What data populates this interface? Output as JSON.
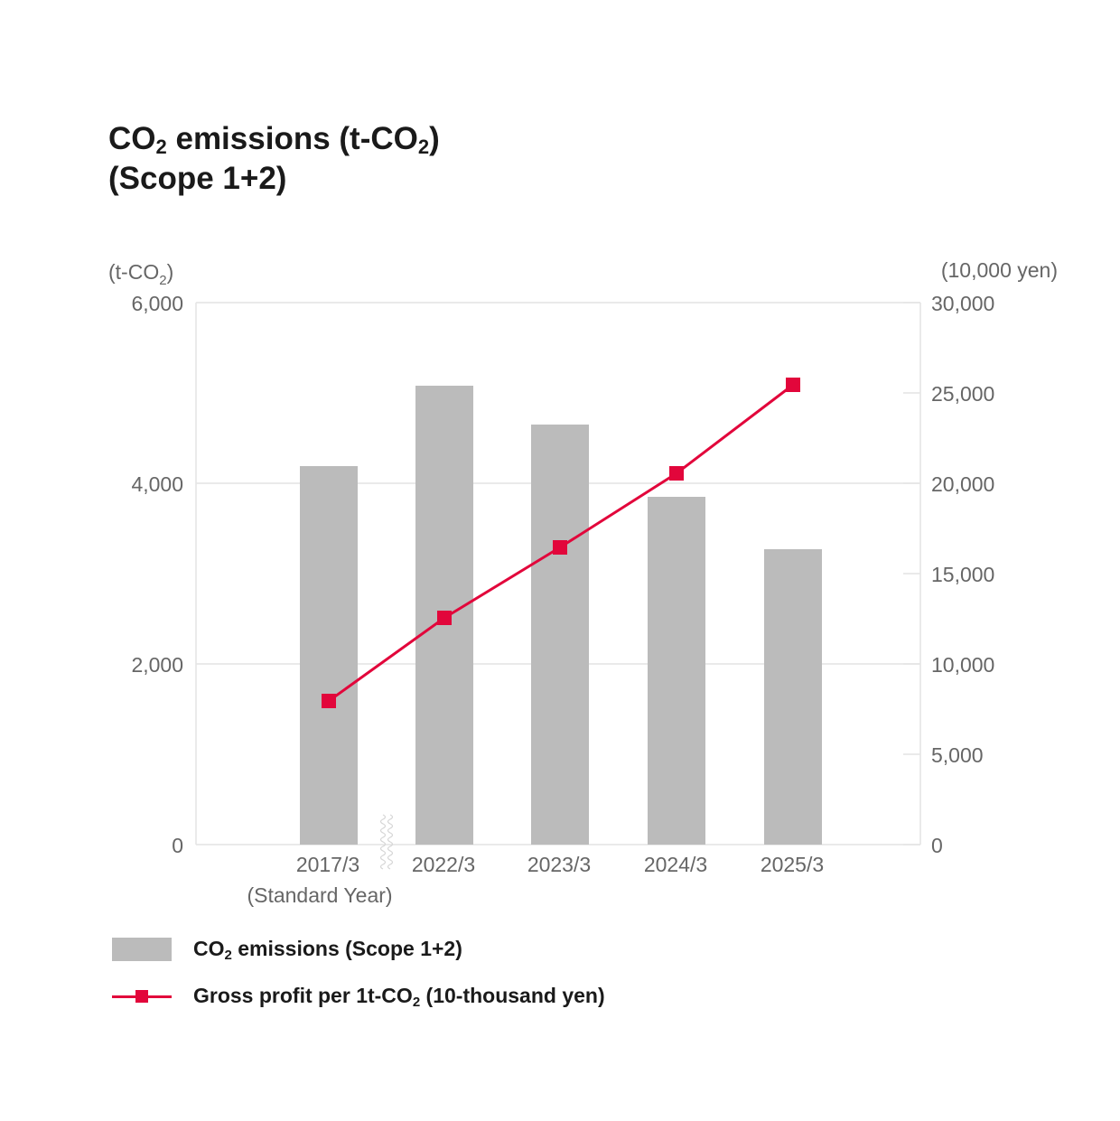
{
  "title": {
    "line1_prefix": "CO",
    "line1_sub": "2",
    "line1_mid": " emissions (t-CO",
    "line1_sub2": "2",
    "line1_suffix": ")",
    "line2": "(Scope 1+2)"
  },
  "legend": {
    "bar_prefix": "CO",
    "bar_sub": "2",
    "bar_suffix": " emissions (Scope 1+2)",
    "line_prefix": "Gross profit per 1t-CO",
    "line_sub": "2",
    "line_suffix": " (10-thousand yen)"
  },
  "colors": {
    "bar": "#bbbbbb",
    "line": "#e2063b",
    "grid": "#e4e4e4",
    "axis_text": "#666666"
  },
  "chart_data": {
    "type": "bar",
    "categories": [
      "2017/3",
      "2022/3",
      "2023/3",
      "2024/3",
      "2025/3"
    ],
    "category_sublabels": [
      "(Standard Year)",
      "",
      "",
      "",
      ""
    ],
    "axis_break_after_index": 0,
    "left_axis": {
      "unit_prefix": "(t-CO",
      "unit_sub": "2",
      "unit_suffix": ")",
      "ylim": [
        0,
        6000
      ],
      "ticks": [
        0,
        2000,
        4000,
        6000
      ],
      "tick_labels": [
        "0",
        "2,000",
        "4,000",
        "6,000"
      ]
    },
    "right_axis": {
      "unit": "(10,000 yen)",
      "ylim": [
        0,
        30000
      ],
      "ticks": [
        0,
        5000,
        10000,
        15000,
        20000,
        25000,
        30000
      ],
      "tick_labels": [
        "0",
        "5,000",
        "10,000",
        "15,000",
        "20,000",
        "25,000",
        "30,000"
      ]
    },
    "series": [
      {
        "name": "CO₂ emissions (Scope 1+2)",
        "kind": "bar",
        "axis": "left",
        "values": [
          4190,
          5080,
          4650,
          3850,
          3270
        ]
      },
      {
        "name": "Gross profit per 1t-CO₂ (10-thousand yen)",
        "kind": "line",
        "axis": "right",
        "marker": "square",
        "values": [
          7950,
          12550,
          16450,
          20550,
          25450
        ]
      }
    ],
    "grid": true,
    "legend_position": "bottom-left"
  }
}
